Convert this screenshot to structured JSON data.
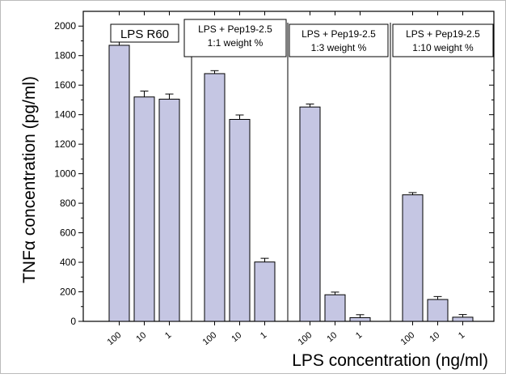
{
  "chart_data": {
    "type": "bar",
    "ylabel": "TNFα concentration (pg/ml)",
    "xlabel": "LPS concentration (ng/ml)",
    "ylim": [
      0,
      2100
    ],
    "yticks": [
      0,
      200,
      400,
      600,
      800,
      1000,
      1200,
      1400,
      1600,
      1800,
      2000
    ],
    "bar_color": "#c5c6e3",
    "groups": [
      {
        "label_lines": [
          "LPS R60"
        ],
        "categories": [
          "100",
          "10",
          "1"
        ],
        "values": [
          1870,
          1520,
          1505
        ],
        "errors": [
          30,
          40,
          35
        ]
      },
      {
        "label_lines": [
          "LPS + Pep19-2.5",
          "1:1 weight %"
        ],
        "categories": [
          "100",
          "10",
          "1"
        ],
        "values": [
          1678,
          1368,
          402
        ],
        "errors": [
          20,
          30,
          25
        ]
      },
      {
        "label_lines": [
          "LPS + Pep19-2.5",
          "1:3 weight %"
        ],
        "categories": [
          "100",
          "10",
          "1"
        ],
        "values": [
          1452,
          180,
          25
        ],
        "errors": [
          20,
          18,
          20
        ]
      },
      {
        "label_lines": [
          "LPS + Pep19-2.5",
          "1:10 weight %"
        ],
        "categories": [
          "100",
          "10",
          "1"
        ],
        "values": [
          857,
          148,
          28
        ],
        "errors": [
          15,
          20,
          18
        ]
      }
    ]
  }
}
